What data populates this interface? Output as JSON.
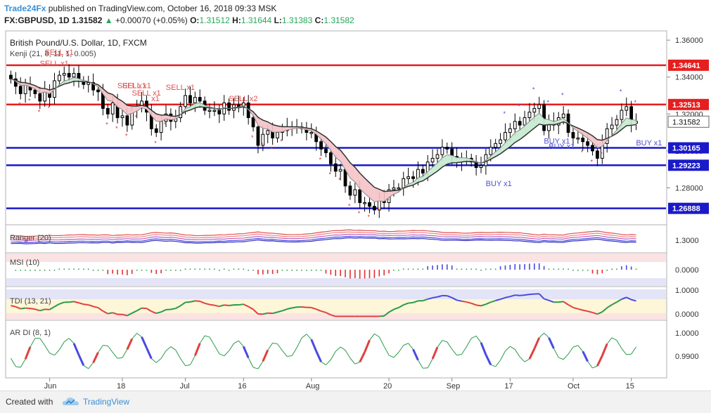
{
  "header": {
    "author": "Trade24Fx",
    "published_text": "published on TradingView.com, October 16, 2018 09:33 MSK",
    "symbol": "FX:GBPUSD, 1D",
    "last": "1.31582",
    "change": "+0.00070 (+0.05%)",
    "o_label": "O:",
    "o_value": "1.31512",
    "h_label": "H:",
    "h_value": "1.31644",
    "l_label": "L:",
    "l_value": "1.31383",
    "c_label": "C:",
    "c_value": "1.31582"
  },
  "footer": {
    "created_with": "Created with",
    "brand": "TradingView"
  },
  "colors": {
    "up_candle": "#ffffff",
    "down_candle": "#000000",
    "support": "#1a1ac8",
    "resistance": "#e61e1e",
    "sell_label": "#e05050",
    "buy_label": "#5050d0",
    "kenji_fill_down": "#f6c8cc",
    "kenji_fill_up": "#c9ecd3"
  },
  "chart_data": [
    {
      "type": "candlestick",
      "title": "British Pound/U.S. Dollar, 1D, FXCM",
      "indicator": "Kenji (21, 8, 11, 1, 0.005)",
      "ylim": [
        1.26,
        1.365
      ],
      "y_ticks": [
        "1.36000",
        "1.34000",
        "1.32000",
        "1.30000",
        "1.28000"
      ],
      "x_ticks": [
        "Jun",
        "18",
        "Jul",
        "16",
        "Aug",
        "20",
        "Sep",
        "17",
        "Oct",
        "15"
      ],
      "x_tick_index": [
        8,
        23,
        36,
        48,
        62,
        78,
        91,
        103,
        116,
        128
      ],
      "current_price": {
        "label": "1.31582",
        "value": 1.31582
      },
      "levels": [
        {
          "label": "1.34641",
          "value": 1.34641,
          "kind": "resistance"
        },
        {
          "label": "1.32513",
          "value": 1.32513,
          "kind": "resistance"
        },
        {
          "label": "1.30165",
          "value": 1.30165,
          "kind": "support"
        },
        {
          "label": "1.29223",
          "value": 1.29223,
          "kind": "support"
        },
        {
          "label": "1.26888",
          "value": 1.26888,
          "kind": "support"
        }
      ],
      "closes": [
        1.339,
        1.335,
        1.331,
        1.336,
        1.333,
        1.331,
        1.327,
        1.333,
        1.329,
        1.338,
        1.341,
        1.342,
        1.34,
        1.342,
        1.338,
        1.336,
        1.337,
        1.333,
        1.332,
        1.323,
        1.32,
        1.326,
        1.318,
        1.319,
        1.314,
        1.322,
        1.324,
        1.327,
        1.321,
        1.312,
        1.31,
        1.316,
        1.32,
        1.316,
        1.318,
        1.324,
        1.33,
        1.326,
        1.329,
        1.327,
        1.322,
        1.322,
        1.322,
        1.32,
        1.326,
        1.322,
        1.325,
        1.324,
        1.326,
        1.318,
        1.313,
        1.303,
        1.309,
        1.311,
        1.307,
        1.31,
        1.311,
        1.313,
        1.313,
        1.313,
        1.312,
        1.31,
        1.31,
        1.305,
        1.301,
        1.299,
        1.293,
        1.289,
        1.29,
        1.281,
        1.276,
        1.279,
        1.272,
        1.272,
        1.27,
        1.268,
        1.274,
        1.272,
        1.279,
        1.28,
        1.28,
        1.285,
        1.286,
        1.285,
        1.29,
        1.288,
        1.294,
        1.296,
        1.298,
        1.302,
        1.301,
        1.297,
        1.294,
        1.296,
        1.296,
        1.294,
        1.291,
        1.292,
        1.298,
        1.302,
        1.304,
        1.306,
        1.31,
        1.312,
        1.316,
        1.314,
        1.318,
        1.321,
        1.323,
        1.325,
        1.311,
        1.316,
        1.314,
        1.318,
        1.32,
        1.31,
        1.307,
        1.307,
        1.305,
        1.303,
        1.3,
        1.296,
        1.304,
        1.312,
        1.314,
        1.317,
        1.322,
        1.324,
        1.315,
        1.316
      ],
      "signals": [
        {
          "label": "SELL x1",
          "index": 8,
          "value": 1.346
        },
        {
          "label": "SELL x1",
          "index": 9,
          "value": 1.352
        },
        {
          "label": "SELL x1",
          "index": 24,
          "value": 1.334
        },
        {
          "label": "SELL x1",
          "index": 25,
          "value": 1.334
        },
        {
          "label": "SELL x1",
          "index": 27,
          "value": 1.33
        },
        {
          "label": "SELL x1",
          "index": 34,
          "value": 1.333
        },
        {
          "label": "x1",
          "index": 31,
          "value": 1.327
        },
        {
          "label": "SELL x2",
          "index": 47,
          "value": 1.327
        },
        {
          "label": "BUY x1",
          "index": 100,
          "value": 1.281
        },
        {
          "label": "BUY x1",
          "index": 112,
          "value": 1.304
        },
        {
          "label": "BUY x1",
          "index": 113,
          "value": 1.301
        },
        {
          "label": "BUY x1",
          "index": 131,
          "value": 1.303
        }
      ]
    },
    {
      "type": "line",
      "title": "Ranger (20)",
      "y_ticks": [
        "1.3000"
      ]
    },
    {
      "type": "histogram",
      "title": "MSI (10)",
      "y_ticks": [
        "0.0000"
      ]
    },
    {
      "type": "line",
      "title": "TDI (13, 21)",
      "y_ticks": [
        "1.0000",
        "0.0000"
      ]
    },
    {
      "type": "line",
      "title": "AR DI (8, 1)",
      "y_ticks": [
        "1.0000",
        "0.9900"
      ]
    }
  ]
}
